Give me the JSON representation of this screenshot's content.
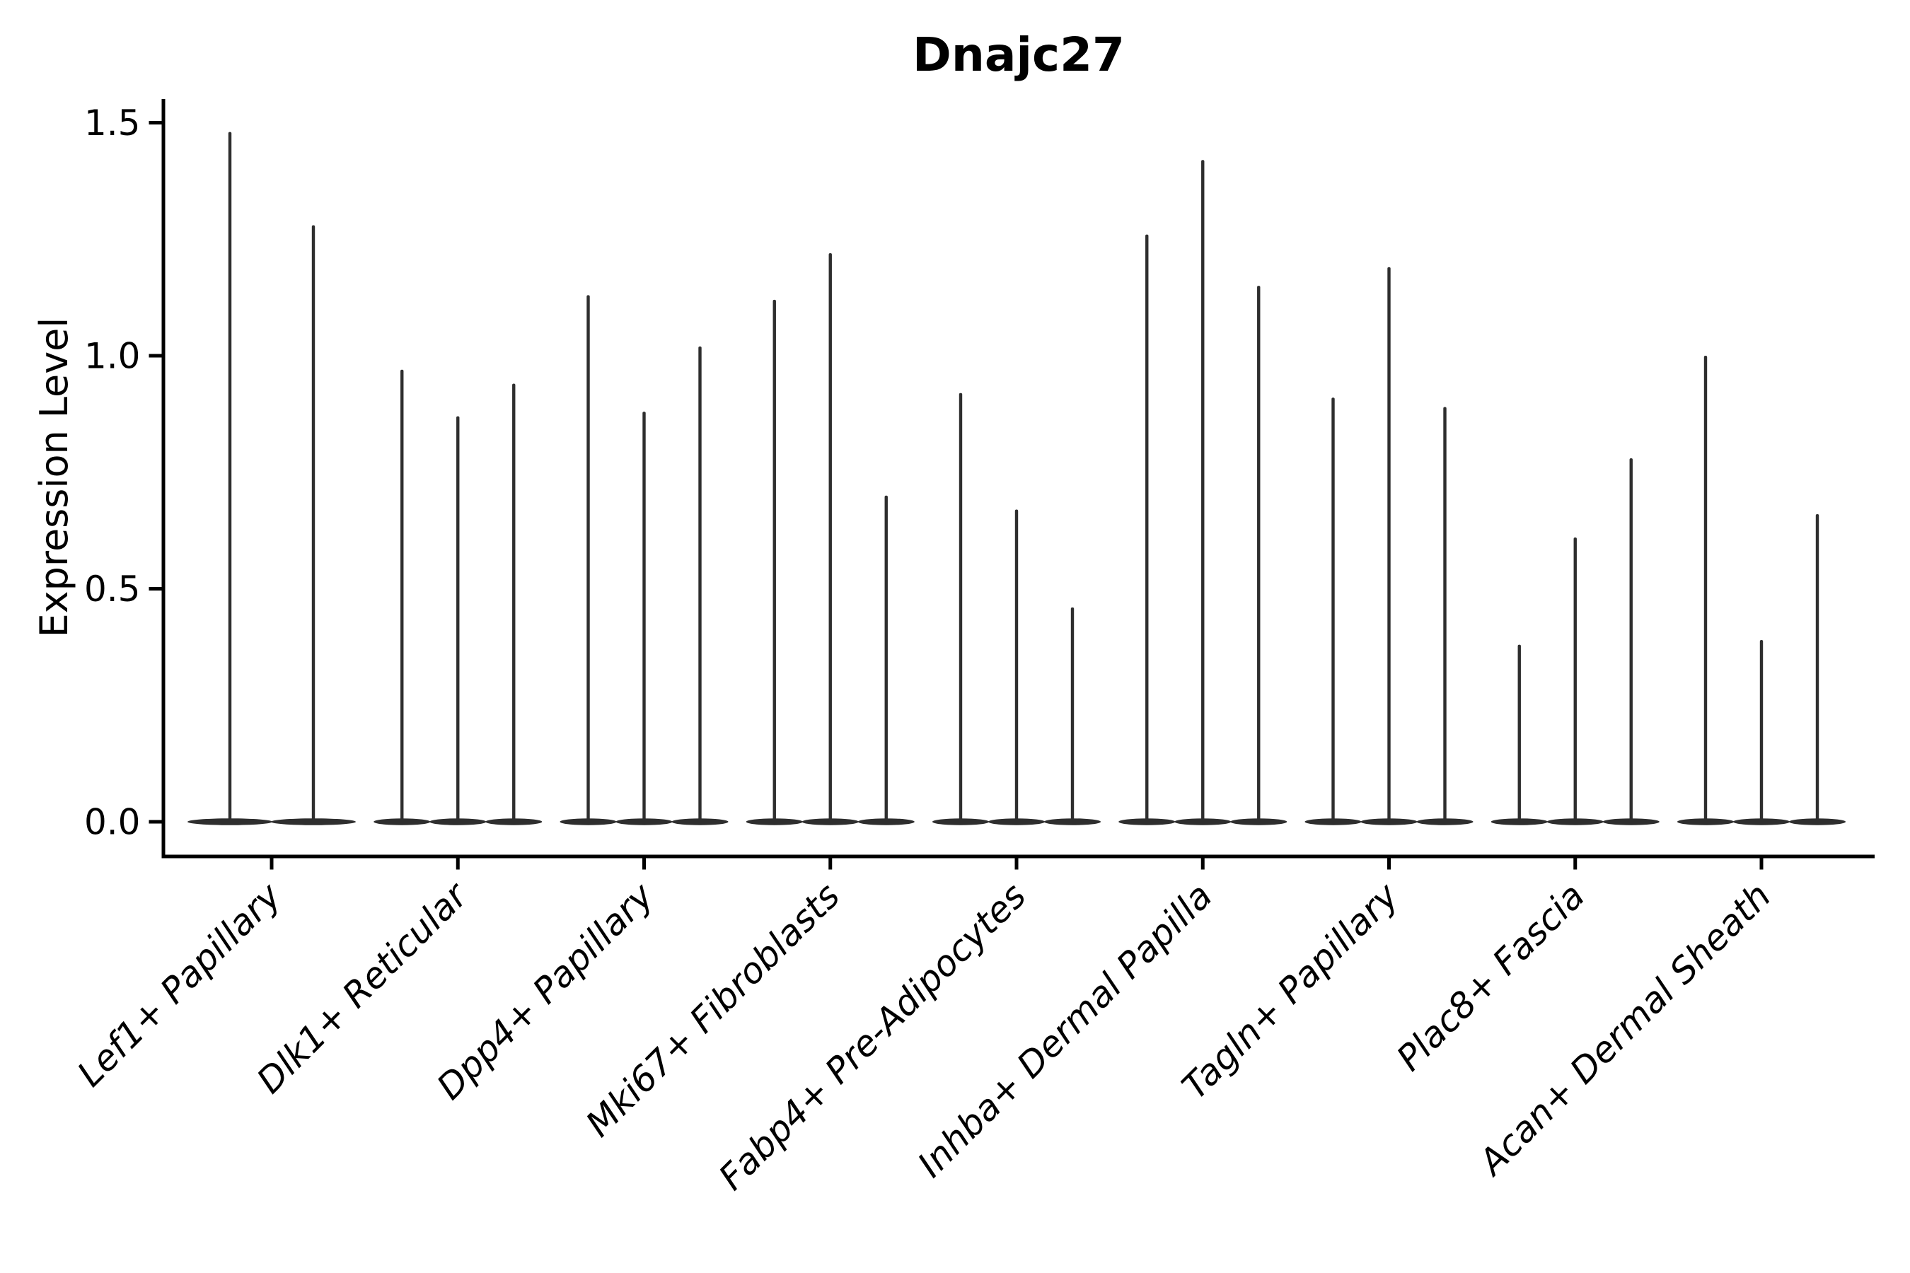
{
  "chart_data": {
    "type": "violin",
    "title": "Dnajc27",
    "xlabel": "",
    "ylabel": "Expression Level",
    "ylim": [
      0,
      1.5
    ],
    "yticks": [
      {
        "label": "0.0",
        "value": 0.0
      },
      {
        "label": "0.5",
        "value": 0.5
      },
      {
        "label": "1.0",
        "value": 1.0
      },
      {
        "label": "1.5",
        "value": 1.5
      }
    ],
    "grid": "off",
    "legend": "none",
    "x_tick_label_rotation_deg": 45,
    "categories": [
      "Lef1+ Papillary",
      "Dlk1+ Reticular",
      "Dpp4+ Papillary",
      "Mki67+ Fibroblasts",
      "Fabp4+ Pre-Adipocytes",
      "Inhba+ Dermal Papilla",
      "Tagln+ Papillary",
      "Plac8+ Fascia",
      "Acan+ Dermal Sheath"
    ],
    "groups": [
      {
        "category": "Lef1+ Papillary",
        "violin_maxima": [
          1.48,
          1.28
        ]
      },
      {
        "category": "Dlk1+ Reticular",
        "violin_maxima": [
          0.97,
          0.87,
          0.94
        ]
      },
      {
        "category": "Dpp4+ Papillary",
        "violin_maxima": [
          1.13,
          0.88,
          1.02
        ]
      },
      {
        "category": "Mki67+ Fibroblasts",
        "violin_maxima": [
          1.12,
          1.22,
          0.7
        ]
      },
      {
        "category": "Fabp4+ Pre-Adipocytes",
        "violin_maxima": [
          0.92,
          0.67,
          0.46
        ]
      },
      {
        "category": "Inhba+ Dermal Papilla",
        "violin_maxima": [
          1.26,
          1.42,
          1.15
        ]
      },
      {
        "category": "Tagln+ Papillary",
        "violin_maxima": [
          0.91,
          1.19,
          0.89
        ]
      },
      {
        "category": "Plac8+ Fascia",
        "violin_maxima": [
          0.38,
          0.61,
          0.78
        ]
      },
      {
        "category": "Acan+ Dermal Sheath",
        "violin_maxima": [
          1.0,
          0.39,
          0.66
        ]
      }
    ],
    "violin_description": "Each category shows 2-3 ultra-thin violins: a flat lens of density at expression 0 and a thin spike rising to the listed maximum expression value.",
    "colors": {
      "violin": "#2e2e2e",
      "axis": "#000000",
      "text": "#000000",
      "background": "#ffffff"
    }
  }
}
